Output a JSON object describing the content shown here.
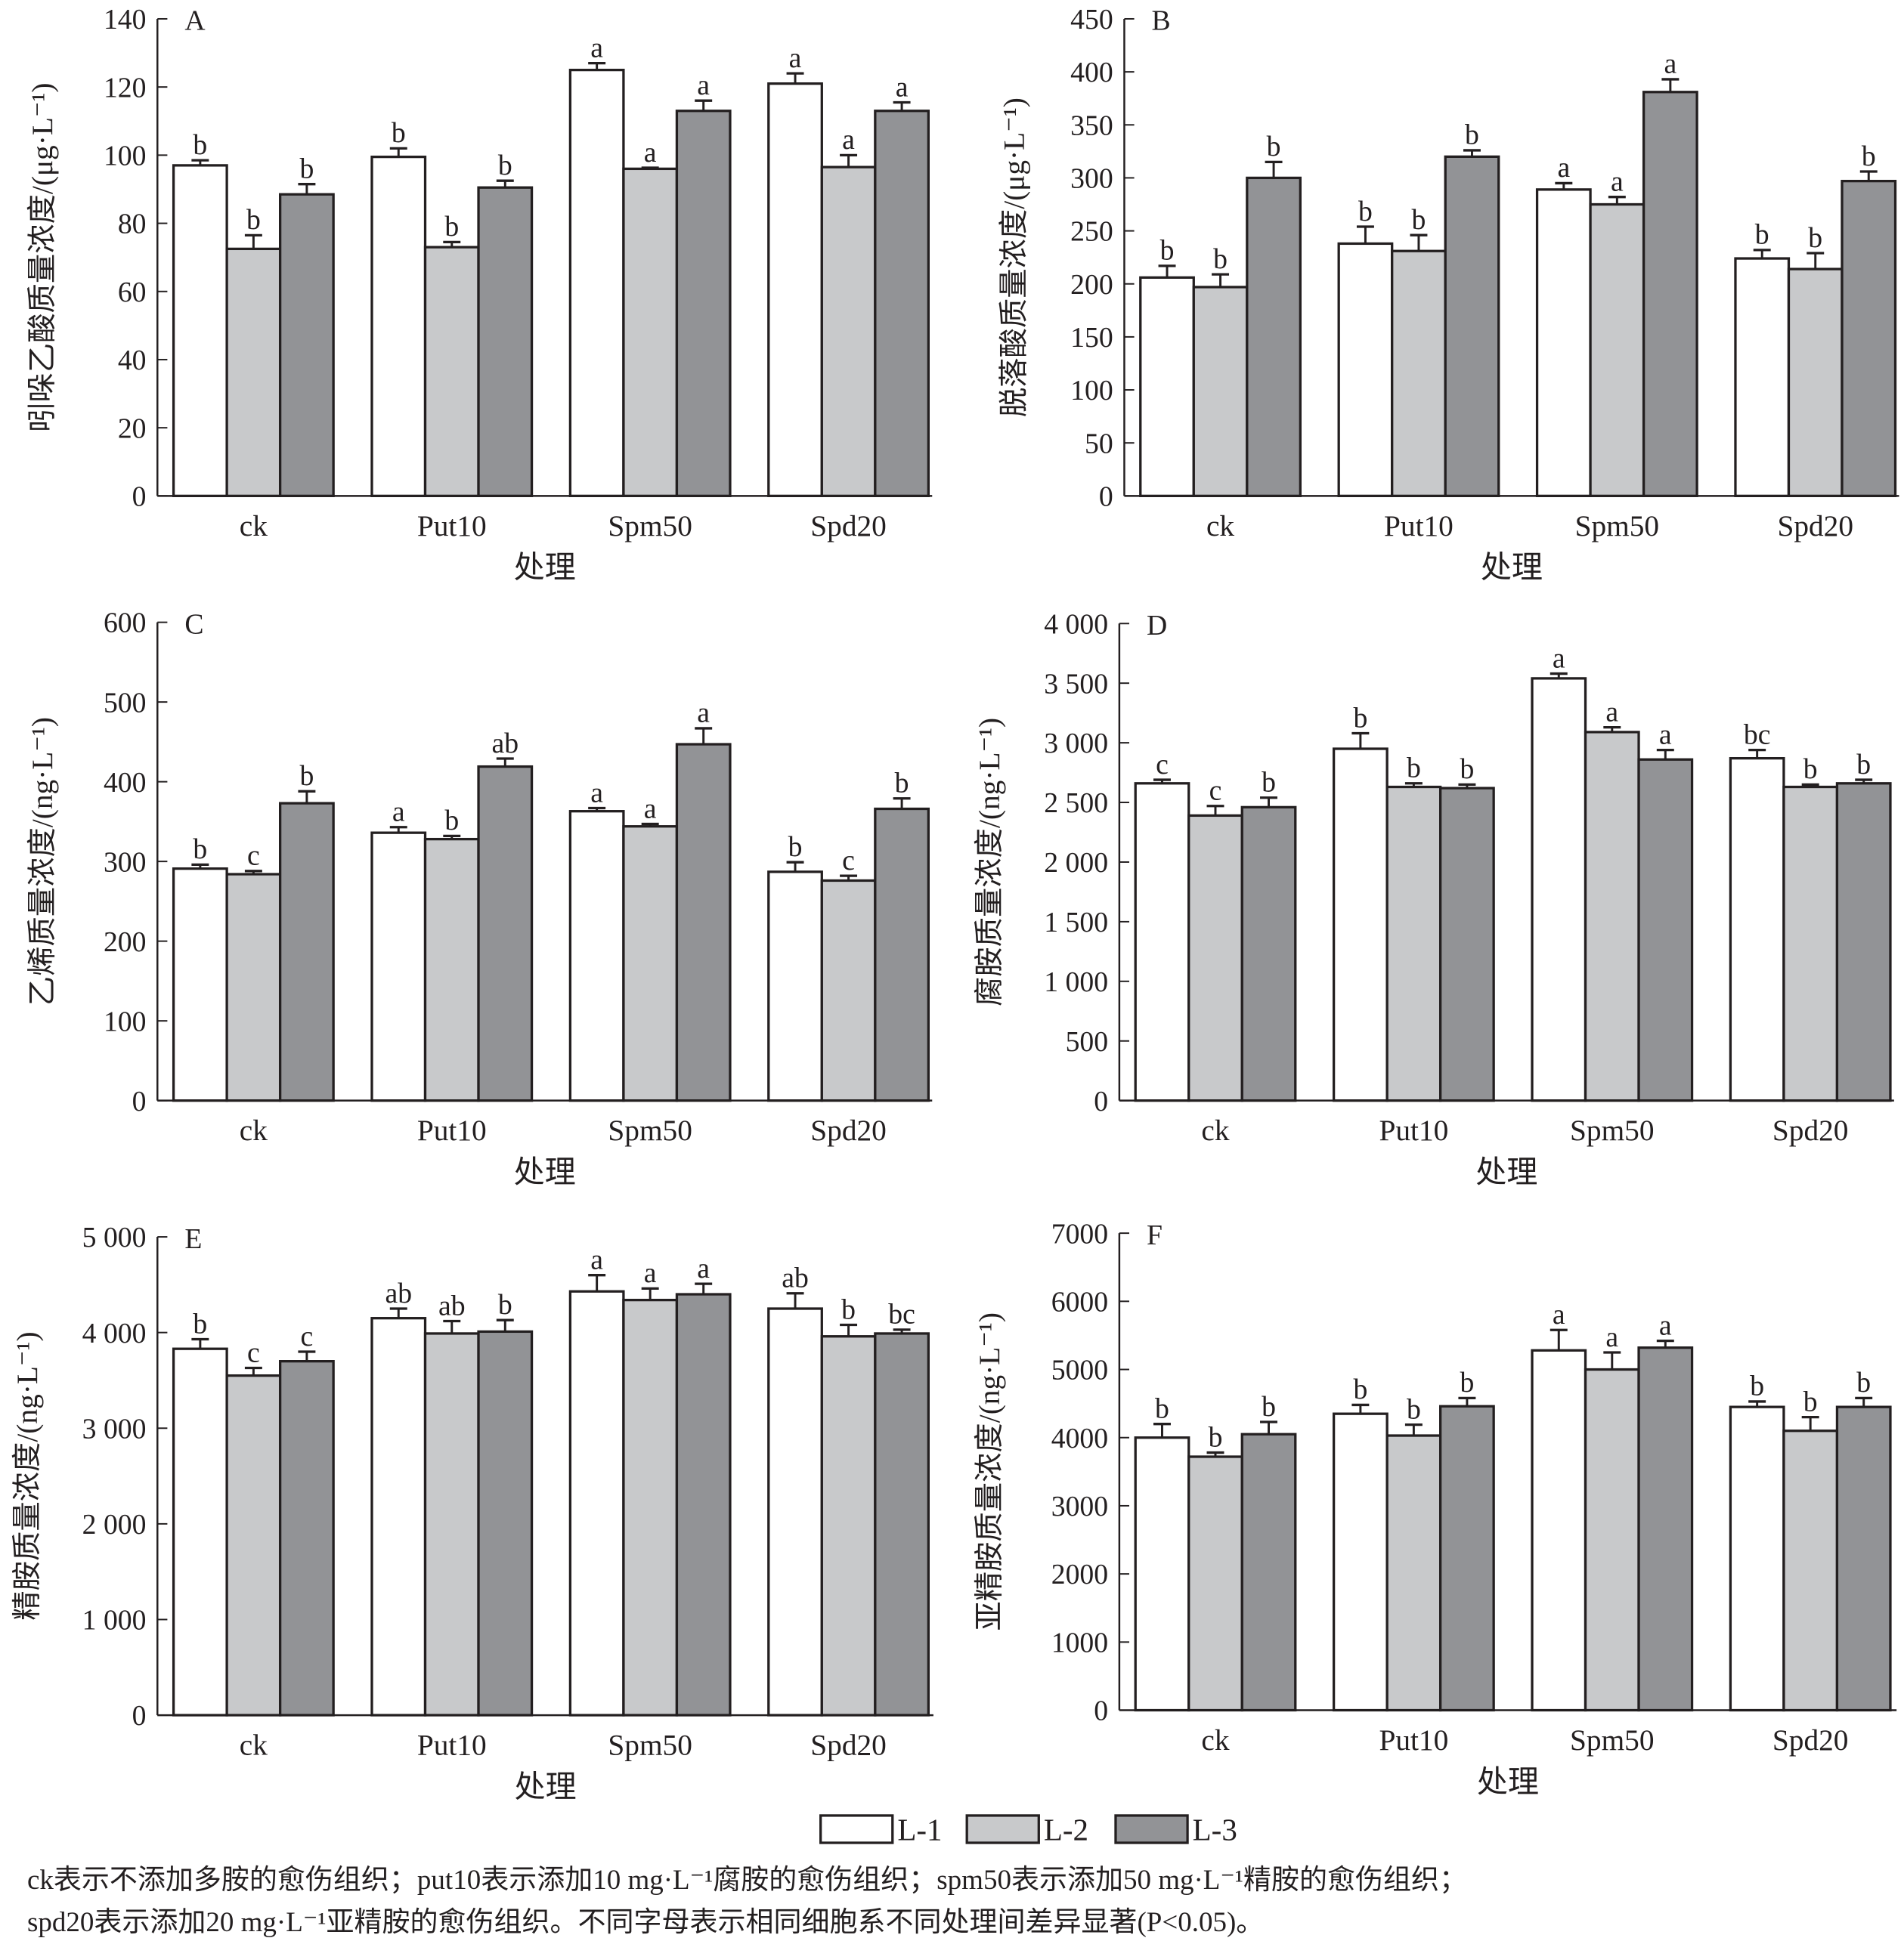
{
  "legend": [
    {
      "label": "L-1",
      "color": "#ffffff"
    },
    {
      "label": "L-2",
      "color": "#c8c9cb"
    },
    {
      "label": "L-3",
      "color": "#929396"
    }
  ],
  "caption": {
    "line1": "ck表示不添加多胺的愈伤组织；put10表示添加10 mg·L⁻¹腐胺的愈伤组织；spm50表示添加50 mg·L⁻¹精胺的愈伤组织；",
    "line2": "spd20表示添加20 mg·L⁻¹亚精胺的愈伤组织。不同字母表示相同细胞系不同处理间差异显著(P<0.05)。"
  },
  "chart_data": [
    {
      "type": "bar",
      "panel": "A",
      "xlabel": "处理",
      "ylabel": "吲哚乙酸质量浓度/(μg·L⁻¹)",
      "ylim": [
        0,
        140
      ],
      "yticks": [
        0,
        20,
        40,
        60,
        80,
        100,
        120,
        140
      ],
      "ytick_labels": [
        "0",
        "20",
        "40",
        "60",
        "80",
        "100",
        "120",
        "140"
      ],
      "categories": [
        "ck",
        "Put10",
        "Spm50",
        "Spd20"
      ],
      "series": [
        {
          "name": "L-1",
          "values": [
            97,
            99.5,
            125,
            121
          ],
          "errors": [
            1.5,
            2.5,
            2,
            3
          ],
          "letters": [
            "b",
            "b",
            "a",
            "a"
          ]
        },
        {
          "name": "L-2",
          "values": [
            72.5,
            73,
            96,
            96.5
          ],
          "errors": [
            4,
            1.5,
            0.3,
            3.5
          ],
          "letters": [
            "b",
            "b",
            "a",
            "a"
          ]
        },
        {
          "name": "L-3",
          "values": [
            88.5,
            90.5,
            113,
            113
          ],
          "errors": [
            3,
            2,
            3,
            2.5
          ],
          "letters": [
            "b",
            "b",
            "a",
            "a"
          ]
        }
      ]
    },
    {
      "type": "bar",
      "panel": "B",
      "xlabel": "处理",
      "ylabel": "脱落酸质量浓度/(μg·L⁻¹)",
      "ylim": [
        0,
        450
      ],
      "yticks": [
        0,
        50,
        100,
        150,
        200,
        250,
        300,
        350,
        400,
        450
      ],
      "ytick_labels": [
        "0",
        "50",
        "100",
        "150",
        "200",
        "250",
        "300",
        "350",
        "400",
        "450"
      ],
      "categories": [
        "ck",
        "Put10",
        "Spm50",
        "Spd20"
      ],
      "series": [
        {
          "name": "L-1",
          "values": [
            206,
            238,
            289,
            224
          ],
          "errors": [
            11,
            16,
            6,
            8
          ],
          "letters": [
            "b",
            "b",
            "a",
            "b"
          ]
        },
        {
          "name": "L-2",
          "values": [
            197,
            231,
            275,
            214
          ],
          "errors": [
            12,
            15,
            7,
            15
          ],
          "letters": [
            "b",
            "b",
            "a",
            "b"
          ]
        },
        {
          "name": "L-3",
          "values": [
            300,
            320,
            381,
            297
          ],
          "errors": [
            15,
            6,
            12,
            9
          ],
          "letters": [
            "b",
            "b",
            "a",
            "b"
          ]
        }
      ]
    },
    {
      "type": "bar",
      "panel": "C",
      "xlabel": "处理",
      "ylabel": "乙烯质量浓度/(ng·L⁻¹)",
      "ylim": [
        0,
        600
      ],
      "yticks": [
        0,
        100,
        200,
        300,
        400,
        500,
        600
      ],
      "ytick_labels": [
        "0",
        "100",
        "200",
        "300",
        "400",
        "500",
        "600"
      ],
      "categories": [
        "ck",
        "Put10",
        "Spm50",
        "Spd20"
      ],
      "series": [
        {
          "name": "L-1",
          "values": [
            291,
            336,
            363,
            287
          ],
          "errors": [
            5,
            7,
            4,
            12
          ],
          "letters": [
            "b",
            "a",
            "a",
            "b"
          ]
        },
        {
          "name": "L-2",
          "values": [
            284,
            328,
            344,
            276
          ],
          "errors": [
            4,
            4,
            3,
            6
          ],
          "letters": [
            "c",
            "b",
            "a",
            "c"
          ]
        },
        {
          "name": "L-3",
          "values": [
            373,
            419,
            447,
            366
          ],
          "errors": [
            15,
            10,
            20,
            13
          ],
          "letters": [
            "b",
            "ab",
            "a",
            "b"
          ]
        }
      ]
    },
    {
      "type": "bar",
      "panel": "D",
      "xlabel": "处理",
      "ylabel": "腐胺质量浓度/(ng·L⁻¹)",
      "ylim": [
        0,
        4000
      ],
      "yticks": [
        0,
        500,
        1000,
        1500,
        2000,
        2500,
        3000,
        3500,
        4000
      ],
      "ytick_labels": [
        "0",
        "500",
        "1 000",
        "1 500",
        "2 000",
        "2 500",
        "3 000",
        "3 500",
        "4 000"
      ],
      "categories": [
        "ck",
        "Put10",
        "Spm50",
        "Spd20"
      ],
      "series": [
        {
          "name": "L-1",
          "values": [
            2660,
            2950,
            3540,
            2870
          ],
          "errors": [
            30,
            130,
            40,
            70
          ],
          "letters": [
            "c",
            "b",
            "a",
            "bc"
          ]
        },
        {
          "name": "L-2",
          "values": [
            2390,
            2630,
            3090,
            2630
          ],
          "errors": [
            80,
            30,
            40,
            20
          ],
          "letters": [
            "c",
            "b",
            "a",
            "b"
          ]
        },
        {
          "name": "L-3",
          "values": [
            2460,
            2620,
            2860,
            2660
          ],
          "errors": [
            80,
            30,
            80,
            30
          ],
          "letters": [
            "b",
            "b",
            "a",
            "b"
          ]
        }
      ]
    },
    {
      "type": "bar",
      "panel": "E",
      "xlabel": "处理",
      "ylabel": "精胺质量浓度/(ng·L⁻¹)",
      "ylim": [
        0,
        5000
      ],
      "yticks": [
        0,
        1000,
        2000,
        3000,
        4000,
        5000
      ],
      "ytick_labels": [
        "0",
        "1 000",
        "2 000",
        "3 000",
        "4 000",
        "5 000"
      ],
      "categories": [
        "ck",
        "Put10",
        "Spm50",
        "Spd20"
      ],
      "series": [
        {
          "name": "L-1",
          "values": [
            3830,
            4150,
            4430,
            4250
          ],
          "errors": [
            100,
            100,
            170,
            160
          ],
          "letters": [
            "b",
            "ab",
            "a",
            "ab"
          ]
        },
        {
          "name": "L-2",
          "values": [
            3550,
            3990,
            4340,
            3960
          ],
          "errors": [
            80,
            130,
            120,
            120
          ],
          "letters": [
            "c",
            "ab",
            "a",
            "b"
          ]
        },
        {
          "name": "L-3",
          "values": [
            3700,
            4010,
            4400,
            3990
          ],
          "errors": [
            100,
            120,
            110,
            40
          ],
          "letters": [
            "c",
            "b",
            "a",
            "bc"
          ]
        }
      ]
    },
    {
      "type": "bar",
      "panel": "F",
      "xlabel": "处理",
      "ylabel": "亚精胺质量浓度/(ng·L⁻¹)",
      "ylim": [
        0,
        7000
      ],
      "yticks": [
        0,
        1000,
        2000,
        3000,
        4000,
        5000,
        6000,
        7000
      ],
      "ytick_labels": [
        "0",
        "1000",
        "2000",
        "3000",
        "4000",
        "5000",
        "6000",
        "7000"
      ],
      "categories": [
        "ck",
        "Put10",
        "Spm50",
        "Spd20"
      ],
      "series": [
        {
          "name": "L-1",
          "values": [
            4000,
            4350,
            5280,
            4450
          ],
          "errors": [
            200,
            130,
            300,
            80
          ],
          "letters": [
            "b",
            "b",
            "a",
            "b"
          ]
        },
        {
          "name": "L-2",
          "values": [
            3720,
            4030,
            5000,
            4100
          ],
          "errors": [
            60,
            160,
            250,
            200
          ],
          "letters": [
            "b",
            "b",
            "a",
            "b"
          ]
        },
        {
          "name": "L-3",
          "values": [
            4050,
            4460,
            5320,
            4450
          ],
          "errors": [
            180,
            120,
            100,
            130
          ],
          "letters": [
            "b",
            "b",
            "a",
            "b"
          ]
        }
      ]
    }
  ]
}
